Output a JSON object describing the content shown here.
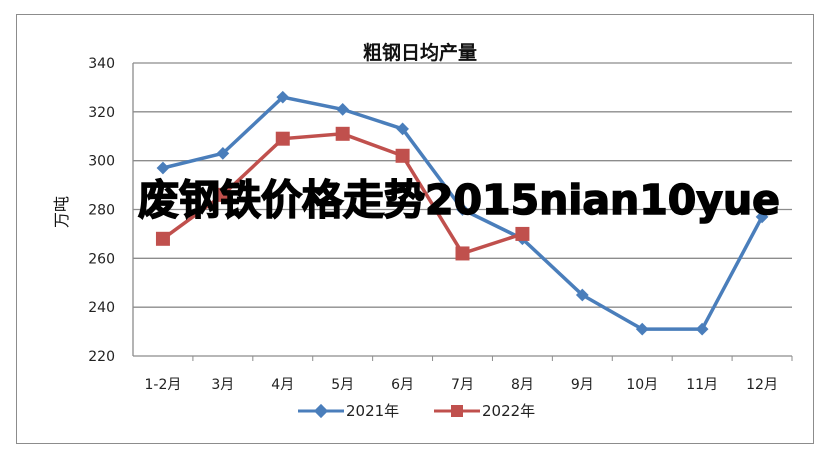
{
  "chart_data": {
    "type": "line",
    "title": "粗钢日均产量",
    "xlabel": "",
    "ylabel": "万吨",
    "categories": [
      "1-2月",
      "3月",
      "4月",
      "5月",
      "6月",
      "7月",
      "8月",
      "9月",
      "10月",
      "11月",
      "12月"
    ],
    "ylim": [
      220,
      340
    ],
    "yticks": [
      220,
      240,
      260,
      280,
      300,
      320,
      340
    ],
    "grid": true,
    "legend": "bottom",
    "series": [
      {
        "name": "2021年",
        "color": "#4a7ebb",
        "marker": "diamond",
        "values": [
          297,
          303,
          326,
          321,
          313,
          280,
          268,
          245,
          231,
          231,
          277
        ]
      },
      {
        "name": "2022年",
        "color": "#c0504d",
        "marker": "square",
        "values": [
          268,
          286,
          309,
          311,
          302,
          262,
          270,
          null,
          null,
          null,
          null
        ]
      }
    ]
  },
  "overlay_text": "废钢铁价格走势2015nian10yue"
}
